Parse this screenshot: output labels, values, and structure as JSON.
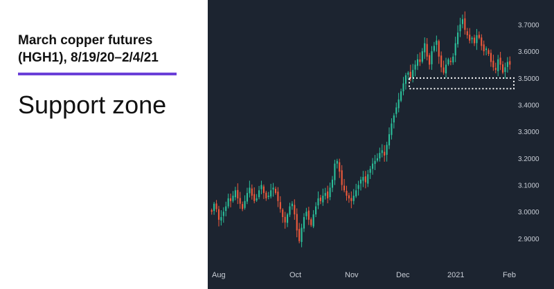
{
  "header": {
    "title_line1": "March copper futures",
    "title_line2": "(HGH1), 8/19/20–2/4/21",
    "subtitle": "Support zone"
  },
  "colors": {
    "up": "#2bbf9a",
    "down": "#ef5a3c",
    "background": "#1c2430",
    "accent": "#6a3fd8",
    "annotation": "#ffffff"
  },
  "chart_data": {
    "type": "candlestick",
    "title": "March copper futures (HGH1), 8/19/20–2/4/21",
    "y_range": [
      2.83,
      3.74
    ],
    "y_ticks": [
      "3.7000",
      "3.6000",
      "3.5000",
      "3.4000",
      "3.3000",
      "3.2000",
      "3.1000",
      "3.0000",
      "2.9000"
    ],
    "x_ticks": [
      "Aug",
      "Oct",
      "Nov",
      "Dec",
      "2021",
      "Feb"
    ],
    "grid": false,
    "annotations": [
      {
        "type": "dotted-rectangle",
        "label": "Support zone",
        "y_low": 3.46,
        "y_high": 3.5,
        "from": "Dec",
        "to": "Feb"
      }
    ],
    "close_series": [
      3.0,
      3.03,
      3.01,
      2.97,
      2.98,
      3.0,
      3.02,
      3.05,
      3.04,
      3.06,
      3.08,
      3.05,
      3.03,
      3.01,
      3.04,
      3.07,
      3.09,
      3.06,
      3.04,
      3.05,
      3.08,
      3.1,
      3.07,
      3.05,
      3.06,
      3.08,
      3.09,
      3.07,
      3.04,
      3.01,
      2.98,
      2.96,
      2.99,
      3.02,
      3.03,
      2.99,
      2.93,
      2.89,
      2.94,
      2.98,
      3.0,
      2.97,
      2.95,
      2.99,
      3.02,
      3.05,
      3.04,
      3.06,
      3.07,
      3.05,
      3.09,
      3.12,
      3.18,
      3.19,
      3.15,
      3.1,
      3.08,
      3.06,
      3.05,
      3.04,
      3.06,
      3.08,
      3.1,
      3.12,
      3.13,
      3.11,
      3.14,
      3.16,
      3.18,
      3.19,
      3.2,
      3.22,
      3.23,
      3.21,
      3.25,
      3.29,
      3.33,
      3.36,
      3.39,
      3.42,
      3.45,
      3.48,
      3.51,
      3.52,
      3.5,
      3.53,
      3.55,
      3.57,
      3.56,
      3.6,
      3.63,
      3.58,
      3.55,
      3.6,
      3.62,
      3.64,
      3.58,
      3.54,
      3.52,
      3.55,
      3.57,
      3.56,
      3.58,
      3.63,
      3.67,
      3.7,
      3.72,
      3.68,
      3.66,
      3.64,
      3.65,
      3.63,
      3.66,
      3.65,
      3.62,
      3.6,
      3.61,
      3.59,
      3.56,
      3.54,
      3.53,
      3.57,
      3.55,
      3.52,
      3.54,
      3.56,
      3.55
    ]
  }
}
